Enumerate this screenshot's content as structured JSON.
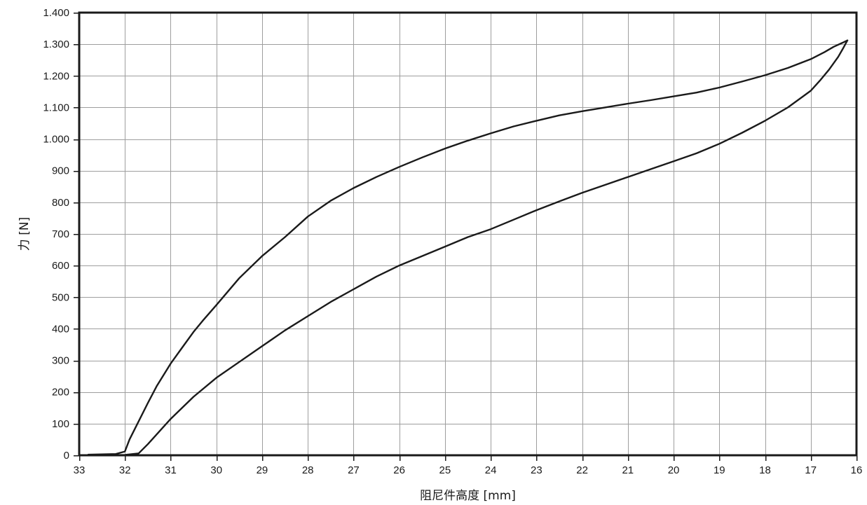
{
  "chart_data": {
    "type": "line",
    "xlabel": "阻尼件高度 [mm]",
    "ylabel": "力 [N]",
    "xlim": [
      33,
      16
    ],
    "ylim": [
      0,
      1400
    ],
    "x_reversed": true,
    "grid": true,
    "x_ticks": [
      33,
      32,
      31,
      30,
      29,
      28,
      27,
      26,
      25,
      24,
      23,
      22,
      21,
      20,
      19,
      18,
      17,
      16
    ],
    "x_tick_labels": [
      "33",
      "32",
      "31",
      "30",
      "29",
      "28",
      "27",
      "26",
      "25",
      "24",
      "23",
      "22",
      "21",
      "20",
      "19",
      "18",
      "17",
      "16"
    ],
    "y_ticks": [
      0,
      100,
      200,
      300,
      400,
      500,
      600,
      700,
      800,
      900,
      1000,
      1100,
      1200,
      1300,
      1400
    ],
    "y_tick_labels": [
      "0",
      "100",
      "200",
      "300",
      "400",
      "500",
      "600",
      "700",
      "800",
      "900",
      "1.000",
      "1.100",
      "1.200",
      "1.300",
      "1.400"
    ],
    "series": [
      {
        "values_x": [
          32.8,
          32.2,
          32.0,
          31.9,
          31.5,
          31.3,
          31.0,
          30.8,
          30.5,
          30.3,
          30.0,
          29.5,
          29.0,
          28.5,
          28.0,
          27.5,
          27.0,
          26.5,
          26.0,
          25.5,
          25.0,
          24.5,
          24.0,
          23.5,
          23.0,
          22.5,
          22.0,
          21.5,
          21.0,
          20.5,
          20.0,
          19.5,
          19.0,
          18.5,
          18.0,
          17.5,
          17.0,
          16.7,
          16.5,
          16.3,
          16.2
        ],
        "values_y": [
          2,
          4,
          12,
          50,
          165,
          220,
          290,
          330,
          390,
          425,
          475,
          560,
          630,
          690,
          755,
          805,
          845,
          880,
          912,
          942,
          970,
          995,
          1018,
          1040,
          1058,
          1075,
          1088,
          1100,
          1112,
          1123,
          1135,
          1147,
          1163,
          1182,
          1202,
          1225,
          1253,
          1275,
          1292,
          1305,
          1312
        ]
      },
      {
        "values_x": [
          32.8,
          32.0,
          31.7,
          31.5,
          31.0,
          30.5,
          30.0,
          29.5,
          29.0,
          28.5,
          28.0,
          27.5,
          27.0,
          26.5,
          26.0,
          25.5,
          25.0,
          24.5,
          24.0,
          23.5,
          23.0,
          22.5,
          22.0,
          21.5,
          21.0,
          20.5,
          20.0,
          19.5,
          19.0,
          18.5,
          18.0,
          17.5,
          17.0,
          16.8,
          16.6,
          16.4,
          16.3,
          16.2
        ],
        "values_y": [
          0,
          1,
          6,
          35,
          115,
          185,
          245,
          295,
          345,
          395,
          440,
          485,
          525,
          565,
          600,
          630,
          660,
          690,
          715,
          745,
          775,
          803,
          830,
          855,
          880,
          905,
          930,
          955,
          985,
          1020,
          1058,
          1100,
          1153,
          1185,
          1220,
          1260,
          1285,
          1312
        ]
      }
    ]
  }
}
